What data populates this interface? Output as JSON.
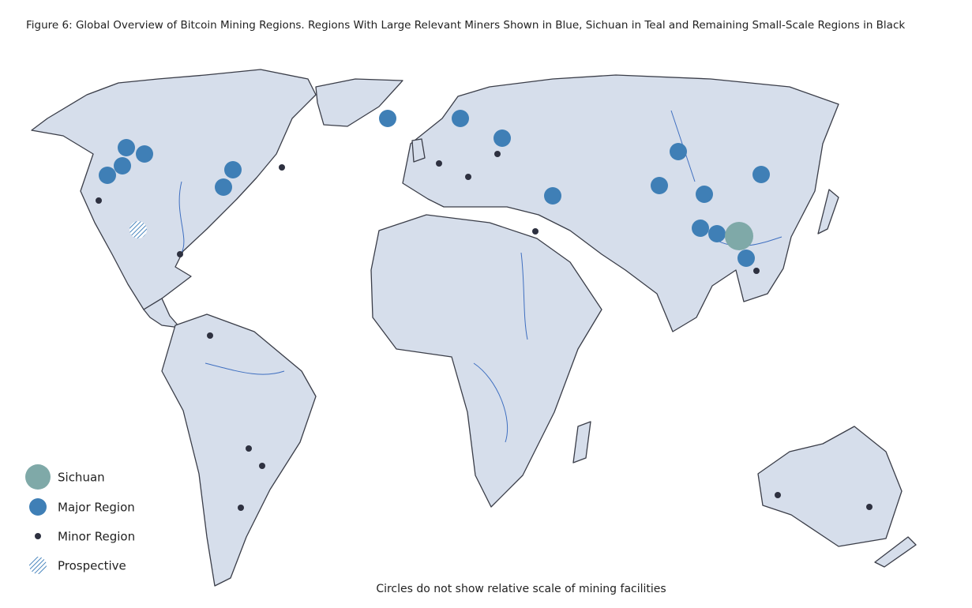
{
  "title": "Figure 6: Global Overview of Bitcoin Mining Regions. Regions With Large Relevant Miners Shown in Blue, Sichuan in Teal and Remaining Small-Scale Regions in Black",
  "legend": {
    "items": [
      "Sichuan",
      "Major Region",
      "Minor Region",
      "Prospective"
    ]
  },
  "footnote": "Circles do not show relative scale of mining facilities"
}
